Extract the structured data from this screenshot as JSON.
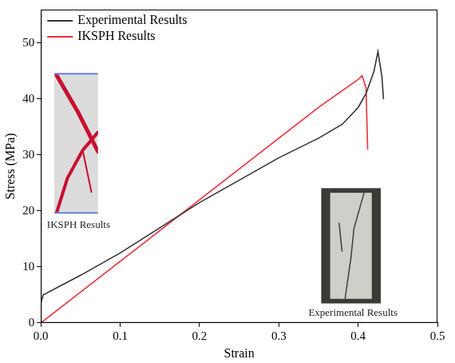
{
  "chart_data": {
    "type": "line",
    "x_label": "Strain",
    "y_label": "Stress (MPa)",
    "xlim": [
      0,
      0.5
    ],
    "xticks": [
      {
        "value": 0,
        "label": "0.0"
      },
      0.1,
      0.2,
      0.3,
      0.4,
      0.5
    ],
    "ylim": [
      0,
      56
    ],
    "yticks": [
      0,
      10,
      20,
      30,
      40,
      50
    ],
    "grid": false,
    "legend": "upper left",
    "annotations": [
      "IKSPH Results",
      "Experimental Results"
    ],
    "series": [
      {
        "name": "Experimental Results",
        "color": "#333333",
        "line_style": "solid",
        "x": [
          0,
          0.003,
          0.05,
          0.1,
          0.15,
          0.2,
          0.25,
          0.3,
          0.35,
          0.38,
          0.4,
          0.41,
          0.42,
          0.425,
          0.43,
          0.432
        ],
        "values": [
          3.5,
          5,
          8.5,
          12.5,
          17,
          21.5,
          25.5,
          29.5,
          33,
          35.5,
          38.5,
          41,
          45,
          48.5,
          44,
          40
        ]
      },
      {
        "name": "IKSPH Results",
        "color": "#e8303a",
        "line_style": "solid",
        "x": [
          0,
          0.1,
          0.2,
          0.3,
          0.35,
          0.38,
          0.4,
          0.405,
          0.41,
          0.412
        ],
        "values": [
          0,
          11,
          22,
          33,
          38.5,
          41.5,
          43.5,
          44.2,
          42,
          31
        ]
      }
    ]
  }
}
